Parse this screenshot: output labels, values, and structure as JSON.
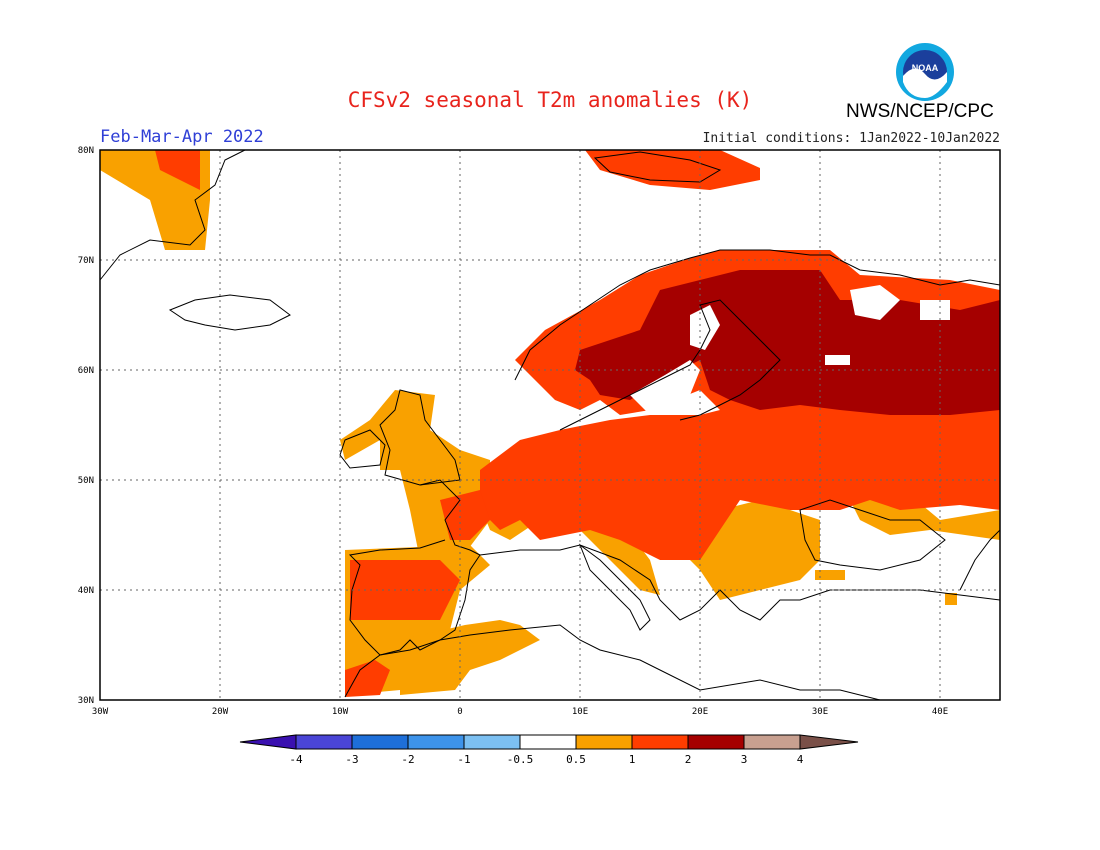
{
  "title": "CFSv2 seasonal T2m anomalies (K)",
  "period": "Feb-Mar-Apr 2022",
  "initial_conditions": "Initial conditions: 1Jan2022-10Jan2022",
  "agency": "NWS/NCEP/CPC",
  "logo_text": "NOAA",
  "map": {
    "lat_labels": [
      "80N",
      "70N",
      "60N",
      "50N",
      "40N",
      "30N"
    ],
    "lon_labels": [
      "30W",
      "20W",
      "10W",
      "0",
      "10E",
      "20E",
      "30E",
      "40E"
    ]
  },
  "colorbar": {
    "labels": [
      "-4",
      "-3",
      "-2",
      "-1",
      "-0.5",
      "0.5",
      "1",
      "2",
      "3",
      "4"
    ],
    "colors": [
      "#3a10b0",
      "#4a45d6",
      "#1e6fd9",
      "#3d93ea",
      "#7cc0f2",
      "#ffffff",
      "#f9a100",
      "#ff3d00",
      "#a50000",
      "#c8a090",
      "#7a5048"
    ]
  },
  "legend_colors": {
    "0.5 to 1": "#f9a100",
    "1 to 2": "#ff3d00",
    "2 to 3": "#a50000"
  }
}
